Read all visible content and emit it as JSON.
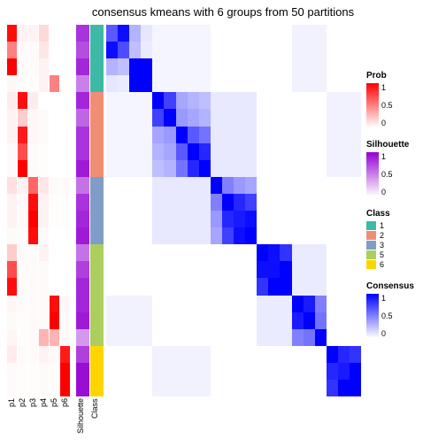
{
  "title": "consensus kmeans with 6 groups from 50 partitions",
  "n_rows": 22,
  "prob_columns": [
    "p1",
    "p2",
    "p3",
    "p4",
    "p5",
    "p6"
  ],
  "anno_column_labels": [
    "p1",
    "p2",
    "p3",
    "p4",
    "p5",
    "p6",
    "Silhouette",
    "Class"
  ],
  "anno_col_widths": [
    11,
    11,
    11,
    11,
    11,
    11,
    15,
    15
  ],
  "gap_after_index": 5,
  "colors": {
    "prob_low": "#ffffff",
    "prob_high": "#ff0000",
    "sil_low": "#ffffff",
    "sil_high": "#9400d3",
    "cons_low": "#ffffff",
    "cons_high": "#0000ff",
    "cons_faint": "#f3f1fb",
    "cons_mid": "#937eec",
    "class": {
      "1": "#3db9a5",
      "2": "#f28d75",
      "3": "#7f9dc7",
      "5": "#abce5f",
      "6": "#ffd500"
    }
  },
  "prob_matrix": [
    [
      0.95,
      0.05,
      0.05,
      0.15,
      0.0,
      0.0
    ],
    [
      0.5,
      0.02,
      0.02,
      0.1,
      0.0,
      0.0
    ],
    [
      1.0,
      0.02,
      0.02,
      0.05,
      0.0,
      0.0
    ],
    [
      0.03,
      0.02,
      0.01,
      0.05,
      0.5,
      0.0
    ],
    [
      0.08,
      0.95,
      0.08,
      0.0,
      0.0,
      0.0
    ],
    [
      0.05,
      0.2,
      0.03,
      0.02,
      0.0,
      0.0
    ],
    [
      0.05,
      0.9,
      0.03,
      0.02,
      0.0,
      0.0
    ],
    [
      0.02,
      0.7,
      0.02,
      0.01,
      0.0,
      0.0
    ],
    [
      0.02,
      1.0,
      0.02,
      0.01,
      0.0,
      0.0
    ],
    [
      0.12,
      0.05,
      0.6,
      0.1,
      0.02,
      0.02
    ],
    [
      0.05,
      0.02,
      0.95,
      0.05,
      0.01,
      0.01
    ],
    [
      0.05,
      0.02,
      1.0,
      0.05,
      0.01,
      0.01
    ],
    [
      0.02,
      0.01,
      0.95,
      0.02,
      0.0,
      0.0
    ],
    [
      0.2,
      0.02,
      0.02,
      0.05,
      0.0,
      0.0
    ],
    [
      0.7,
      0.02,
      0.02,
      0.02,
      0.0,
      0.0
    ],
    [
      0.95,
      0.02,
      0.02,
      0.02,
      0.0,
      0.0
    ],
    [
      0.04,
      0.02,
      0.02,
      0.02,
      0.95,
      0.03
    ],
    [
      0.02,
      0.01,
      0.02,
      0.02,
      1.0,
      0.02
    ],
    [
      0.04,
      0.01,
      0.02,
      0.3,
      0.3,
      0.02
    ],
    [
      0.08,
      0.02,
      0.02,
      0.05,
      0.02,
      0.9
    ],
    [
      0.02,
      0.01,
      0.01,
      0.02,
      0.01,
      1.0
    ],
    [
      0.02,
      0.01,
      0.01,
      0.02,
      0.01,
      1.0
    ]
  ],
  "silhouette": [
    0.8,
    0.7,
    0.85,
    0.5,
    0.85,
    0.6,
    0.8,
    0.8,
    0.9,
    0.55,
    0.8,
    0.85,
    0.9,
    0.55,
    0.75,
    0.85,
    0.85,
    0.9,
    0.4,
    0.75,
    0.95,
    0.95
  ],
  "class": [
    "1",
    "1",
    "1",
    "1",
    "2",
    "2",
    "2",
    "2",
    "2",
    "3",
    "3",
    "3",
    "3",
    "5",
    "5",
    "5",
    "5",
    "5",
    "5",
    "6",
    "6",
    "6"
  ],
  "group_sizes": [
    4,
    5,
    4,
    3,
    3,
    3
  ],
  "consensus_blocks": [
    {
      "r": [
        0,
        4
      ],
      "c": [
        0,
        4
      ],
      "pat": [
        [
          0.65,
          0.95,
          0.3,
          0.1
        ],
        [
          0.95,
          0.7,
          0.25,
          0.08
        ],
        [
          0.3,
          0.25,
          1.0,
          1.0
        ],
        [
          0.1,
          0.08,
          1.0,
          1.0
        ]
      ]
    },
    {
      "r": [
        4,
        9
      ],
      "c": [
        4,
        9
      ],
      "pat": [
        [
          1.0,
          0.75,
          0.35,
          0.3,
          0.25
        ],
        [
          0.75,
          1.0,
          0.4,
          0.35,
          0.3
        ],
        [
          0.35,
          0.4,
          1.0,
          0.65,
          0.55
        ],
        [
          0.3,
          0.35,
          0.65,
          1.0,
          0.85
        ],
        [
          0.25,
          0.3,
          0.55,
          0.85,
          1.0
        ]
      ]
    },
    {
      "r": [
        9,
        13
      ],
      "c": [
        9,
        13
      ],
      "pat": [
        [
          1.0,
          0.5,
          0.4,
          0.35
        ],
        [
          0.5,
          1.0,
          0.85,
          0.75
        ],
        [
          0.4,
          0.85,
          0.9,
          0.95
        ],
        [
          0.35,
          0.75,
          0.95,
          1.0
        ]
      ]
    },
    {
      "r": [
        13,
        16
      ],
      "c": [
        13,
        16
      ],
      "pat": [
        [
          1.0,
          0.95,
          0.8
        ],
        [
          0.95,
          0.95,
          1.0
        ],
        [
          0.8,
          1.0,
          1.0
        ]
      ]
    },
    {
      "r": [
        16,
        19
      ],
      "c": [
        16,
        19
      ],
      "pat": [
        [
          1.0,
          0.9,
          0.5
        ],
        [
          0.9,
          1.0,
          0.55
        ],
        [
          0.5,
          0.55,
          1.0
        ]
      ]
    },
    {
      "r": [
        19,
        22
      ],
      "c": [
        19,
        22
      ],
      "pat": [
        [
          1.0,
          0.85,
          0.8
        ],
        [
          0.85,
          0.9,
          1.0
        ],
        [
          0.8,
          1.0,
          1.0
        ]
      ]
    }
  ],
  "off_block_faint": [
    {
      "rows": [
        0,
        4
      ],
      "cols": [
        4,
        9
      ],
      "v": 0.04
    },
    {
      "rows": [
        4,
        9
      ],
      "cols": [
        0,
        4
      ],
      "v": 0.04
    },
    {
      "rows": [
        4,
        9
      ],
      "cols": [
        9,
        13
      ],
      "v": 0.09
    },
    {
      "rows": [
        9,
        13
      ],
      "cols": [
        4,
        9
      ],
      "v": 0.09
    },
    {
      "rows": [
        0,
        4
      ],
      "cols": [
        16,
        19
      ],
      "v": 0.05
    },
    {
      "rows": [
        16,
        19
      ],
      "cols": [
        0,
        4
      ],
      "v": 0.05
    },
    {
      "rows": [
        4,
        9
      ],
      "cols": [
        19,
        22
      ],
      "v": 0.05
    },
    {
      "rows": [
        19,
        22
      ],
      "cols": [
        4,
        9
      ],
      "v": 0.05
    },
    {
      "rows": [
        13,
        16
      ],
      "cols": [
        16,
        19
      ],
      "v": 0.08
    },
    {
      "rows": [
        16,
        19
      ],
      "cols": [
        13,
        16
      ],
      "v": 0.08
    }
  ],
  "legends": {
    "prob": {
      "title": "Prob",
      "ticks": [
        "1",
        "0.5",
        "0"
      ]
    },
    "silhouette": {
      "title": "Silhouette",
      "ticks": [
        "1",
        "0.5",
        "0"
      ]
    },
    "class": {
      "title": "Class",
      "items": [
        "1",
        "2",
        "3",
        "5",
        "6"
      ]
    },
    "consensus": {
      "title": "Consensus",
      "ticks": [
        "1",
        "0.5",
        "0"
      ]
    }
  }
}
